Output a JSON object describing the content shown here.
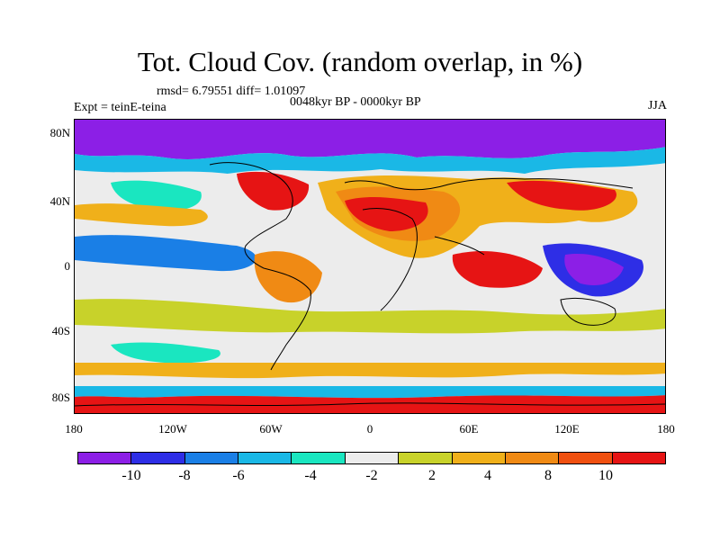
{
  "title": "Tot. Cloud Cov. (random overlap, in %)",
  "stats": "rmsd= 6.79551 diff= 1.01097",
  "experiment": "Expt = teinE-teina",
  "period": "0048kyr BP - 0000kyr BP",
  "season": "JJA",
  "lat_ticks": [
    "80N",
    "40N",
    "0",
    "40S",
    "80S"
  ],
  "lon_ticks": [
    "180",
    "120W",
    "60W",
    "0",
    "60E",
    "120E",
    "180"
  ],
  "colorbar": {
    "colors": [
      "#8c1fe6",
      "#2e2ee6",
      "#1a7fe6",
      "#1ab8e6",
      "#1ae6c0",
      "#ececec",
      "#c8d22a",
      "#f0b01a",
      "#f08a14",
      "#f05010",
      "#e61414"
    ],
    "labels": [
      "-10",
      "-8",
      "-6",
      "-4",
      "-2",
      "2",
      "4",
      "8",
      "10"
    ]
  }
}
